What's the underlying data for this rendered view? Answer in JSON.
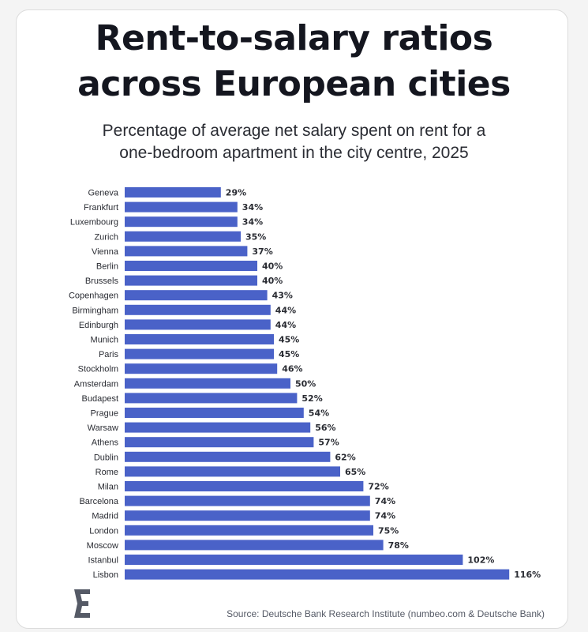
{
  "chart_data": {
    "type": "bar",
    "orientation": "horizontal",
    "title": "Rent-to-salary ratios across European cities",
    "subtitle_line1": "Percentage of average net salary spent on rent for a",
    "subtitle_line2": "one-bedroom apartment in the city centre, 2025",
    "categories": [
      "Geneva",
      "Frankfurt",
      "Luxembourg",
      "Zurich",
      "Vienna",
      "Berlin",
      "Brussels",
      "Copenhagen",
      "Birmingham",
      "Edinburgh",
      "Munich",
      "Paris",
      "Stockholm",
      "Amsterdam",
      "Budapest",
      "Prague",
      "Warsaw",
      "Athens",
      "Dublin",
      "Rome",
      "Milan",
      "Barcelona",
      "Madrid",
      "London",
      "Moscow",
      "Istanbul",
      "Lisbon"
    ],
    "values": [
      29,
      34,
      34,
      35,
      37,
      40,
      40,
      43,
      44,
      44,
      45,
      45,
      46,
      50,
      52,
      54,
      56,
      57,
      62,
      65,
      72,
      74,
      74,
      75,
      78,
      102,
      116
    ],
    "value_suffix": "%",
    "bar_color": "#4a62c8",
    "grid": false,
    "legend": "none"
  },
  "title_line1": "Rent-to-salary ratios",
  "title_line2": "across European cities",
  "source": "Source: Deutsche Bank Research Institute (numbeo.com & Deutsche Bank)",
  "logo_icon": "stylized-e-logo"
}
